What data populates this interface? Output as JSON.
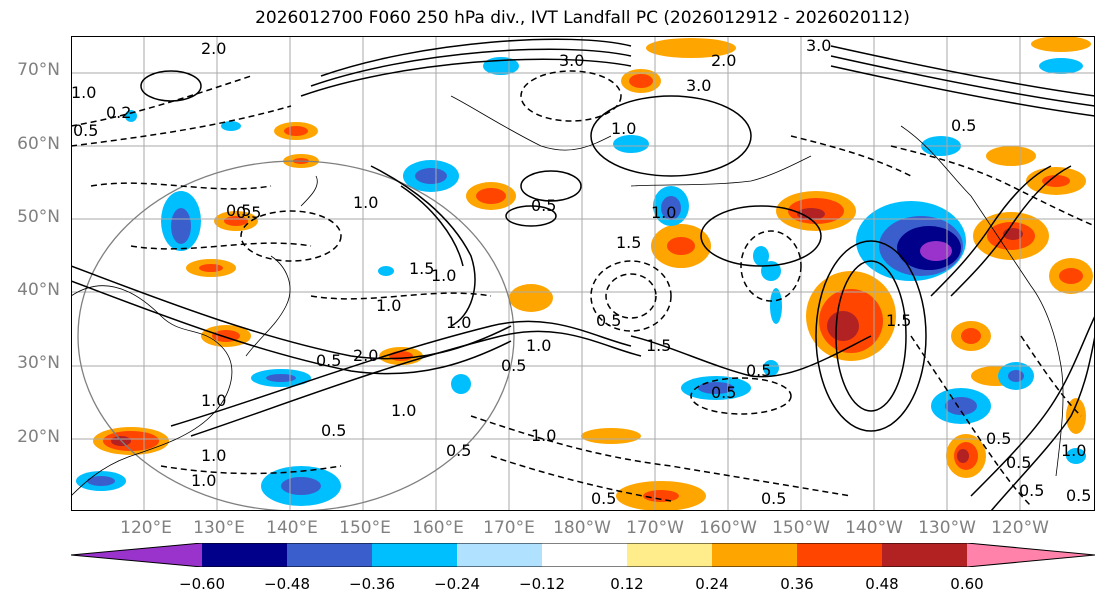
{
  "title": "2026012700 F060 250 hPa div., IVT Landfall PC (2026012912 - 2026020112)",
  "lat_labels": [
    "70°N",
    "60°N",
    "50°N",
    "40°N",
    "30°N",
    "20°N"
  ],
  "lon_labels": [
    "120°E",
    "130°E",
    "140°E",
    "150°E",
    "160°E",
    "170°E",
    "180°W",
    "170°W",
    "160°W",
    "150°W",
    "140°W",
    "130°W",
    "120°W"
  ],
  "colorbar": {
    "ticks": [
      "−0.60",
      "−0.48",
      "−0.36",
      "−0.24",
      "−0.12",
      "0.12",
      "0.24",
      "0.36",
      "0.48",
      "0.60"
    ],
    "colors": [
      "#9933cc",
      "#00008b",
      "#3a5fcd",
      "#00bfff",
      "#b0e2ff",
      "#ffffff",
      "#ffec8b",
      "#ffa500",
      "#ff4500",
      "#b22222",
      "#ff82ab"
    ]
  },
  "contour_labels": [
    "3.0",
    "2.0",
    "2.0",
    "3.0",
    "3.0",
    "1.0",
    "1.0",
    "0.5",
    "0.2",
    "0.5",
    "1.0",
    "1.5",
    "1.0",
    "0.5",
    "0.5",
    "1.0",
    "1.5",
    "1.0",
    "1.0",
    "0.5",
    "2.0",
    "1.5",
    "1.5",
    "0.5",
    "1.0",
    "0.5",
    "0.5",
    "1.0",
    "0.5",
    "0.5",
    "1.0",
    "1.0",
    "0.5",
    "0.5",
    "0.5",
    "0.5",
    "1.0",
    "0.5",
    "1.0",
    "0.5",
    "1.0",
    "0.5",
    "0.5"
  ],
  "colors": {
    "land_outline": "#808080",
    "grid": "#aaaaaa",
    "contour": "#000000",
    "tick_label": "#808080"
  }
}
